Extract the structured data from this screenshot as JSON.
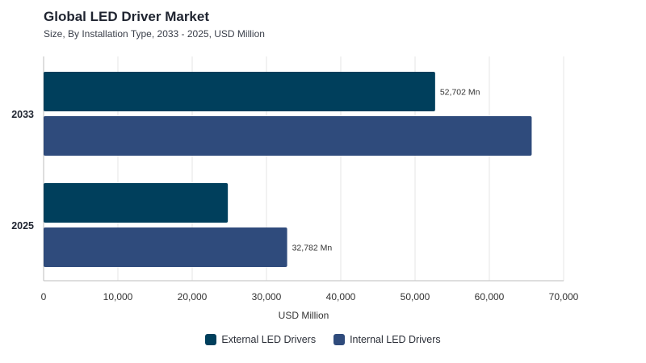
{
  "header": {
    "title": "Global LED Driver Market",
    "subtitle": "Size, By Installation Type, 2033 - 2025, USD Million"
  },
  "chart_data": {
    "type": "bar",
    "orientation": "horizontal",
    "categories": [
      "2033",
      "2025"
    ],
    "series": [
      {
        "name": "External LED Drivers",
        "color": "#003f5c",
        "values": [
          52702,
          24800
        ],
        "labels": [
          "52,702 Mn",
          ""
        ]
      },
      {
        "name": "Internal LED Drivers",
        "color": "#2f4b7c",
        "values": [
          65700,
          32782
        ],
        "labels": [
          "",
          "32,782 Mn"
        ]
      }
    ],
    "xlabel": "USD Million",
    "xlim": [
      0,
      70000
    ],
    "xticks": [
      0,
      10000,
      20000,
      30000,
      40000,
      50000,
      60000,
      70000
    ],
    "xtick_labels": [
      "0",
      "10,000",
      "20,000",
      "30,000",
      "40,000",
      "50,000",
      "60,000",
      "70,000"
    ],
    "grid": true,
    "legend_position": "bottom-center"
  }
}
